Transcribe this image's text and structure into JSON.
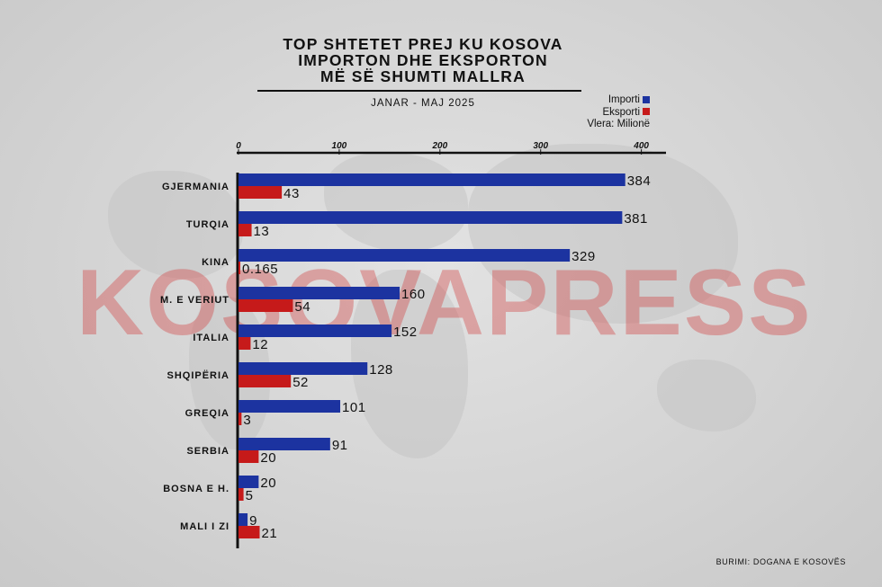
{
  "watermark": "KOSOVAPRESS",
  "source": "BURIMI: DOGANA E KOSOVËS",
  "chart_data": {
    "type": "bar",
    "orientation": "horizontal",
    "title_lines": [
      "TOP SHTETET PREJ KU KOSOVA",
      "IMPORTON DHE EKSPORTON",
      "MË SË SHUMTI MALLRA"
    ],
    "subtitle": "JANAR - MAJ 2025",
    "units_note": "Vlera: Milionë",
    "categories": [
      "GJERMANIA",
      "TURQIA",
      "KINA",
      "M. E VERIUT",
      "ITALIA",
      "SHQIPËRIA",
      "GREQIA",
      "SERBIA",
      "BOSNA E H.",
      "MALI I ZI"
    ],
    "series": [
      {
        "name": "Importi",
        "color": "#1c33a0",
        "values": [
          384,
          381,
          329,
          160,
          152,
          128,
          101,
          91,
          20,
          9
        ],
        "labels": [
          "384",
          "381",
          "329",
          "160",
          "152",
          "128",
          "101",
          "91",
          "20",
          "9"
        ]
      },
      {
        "name": "Eksporti",
        "color": "#c61a1a",
        "values": [
          43,
          13,
          0.165,
          54,
          12,
          52,
          3,
          20,
          5,
          21
        ],
        "labels": [
          "43",
          "13",
          "0.165",
          "54",
          "12",
          "52",
          "3",
          "20",
          "5",
          "21"
        ]
      }
    ],
    "xticks": [
      0,
      100,
      200,
      300,
      400
    ],
    "xlim": [
      0,
      420
    ],
    "legend_position": "top-right",
    "grid": false
  }
}
